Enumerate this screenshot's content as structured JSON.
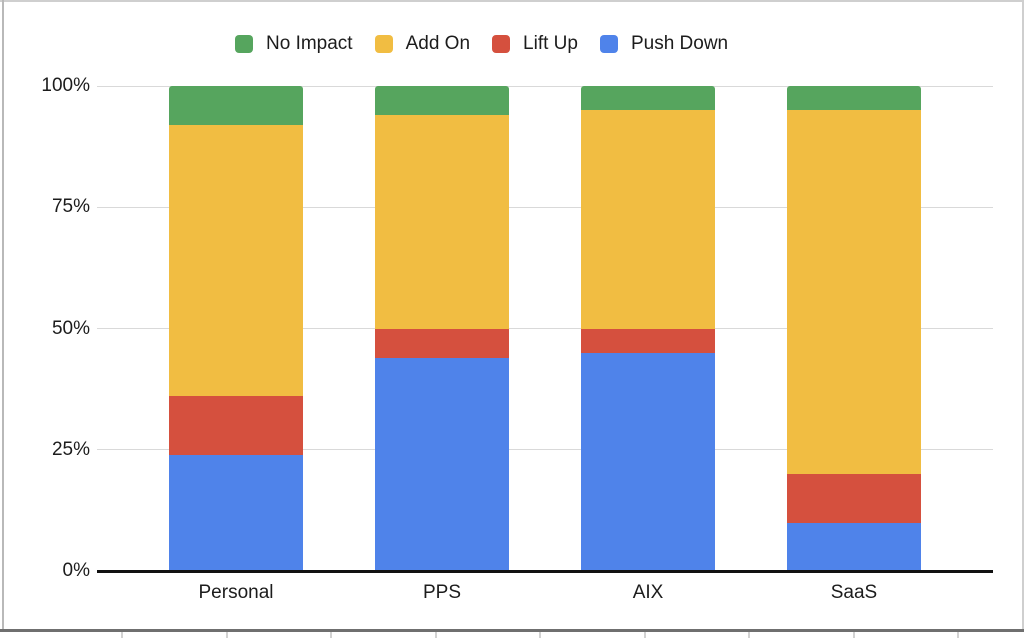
{
  "chart_data": {
    "type": "bar",
    "subtype": "stacked-100-percent",
    "title": "",
    "xlabel": "",
    "ylabel": "",
    "categories": [
      "Personal",
      "PPS",
      "AIX",
      "SaaS"
    ],
    "series": [
      {
        "name": "No Impact",
        "color": "#56A55E",
        "values": [
          8,
          6,
          5,
          5
        ]
      },
      {
        "name": "Add On",
        "color": "#F1BD42",
        "values": [
          56,
          44,
          45,
          75
        ]
      },
      {
        "name": "Lift Up",
        "color": "#D5503E",
        "values": [
          12,
          6,
          5,
          10
        ]
      },
      {
        "name": "Push Down",
        "color": "#4F83EA",
        "values": [
          24,
          44,
          45,
          10
        ]
      }
    ],
    "stack_order_bottom_to_top": [
      "Push Down",
      "Lift Up",
      "Add On",
      "No Impact"
    ],
    "y_ticks": [
      {
        "label": "100%",
        "value": 100
      },
      {
        "label": "75%",
        "value": 75
      },
      {
        "label": "50%",
        "value": 50
      },
      {
        "label": "25%",
        "value": 25
      },
      {
        "label": "0%",
        "value": 0
      }
    ],
    "ylim": [
      0,
      100
    ],
    "grid": true,
    "legend_position": "top",
    "colors": {
      "gridline": "#d9d9d9",
      "axis": "#111111",
      "text": "#1c1c1c",
      "background": "#ffffff"
    }
  }
}
